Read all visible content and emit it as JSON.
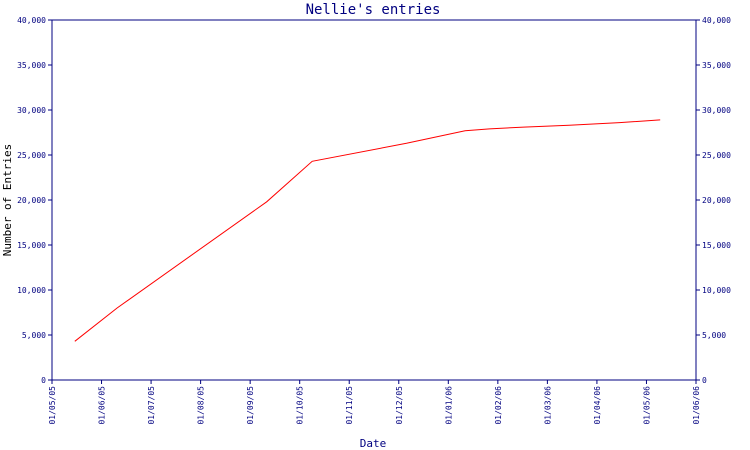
{
  "chart_data": {
    "type": "line",
    "title": "Nellie's entries",
    "xlabel": "Date",
    "ylabel": "Number of Entries",
    "x_ticks": [
      "01/05/05",
      "01/06/05",
      "01/07/05",
      "01/08/05",
      "01/09/05",
      "01/10/05",
      "01/11/05",
      "01/12/05",
      "01/01/06",
      "01/02/06",
      "01/03/06",
      "01/04/06",
      "01/05/06",
      "01/06/06"
    ],
    "y_ticks": [
      "0",
      "5,000",
      "10,000",
      "15,000",
      "20,000",
      "25,000",
      "30,000",
      "35,000",
      "40,000"
    ],
    "ylim": [
      0,
      40000
    ],
    "xlim": [
      "2005-05-01",
      "2006-06-01"
    ],
    "grid": false,
    "series": [
      {
        "color": "#ff0000",
        "x": [
          "2005-05-15",
          "2005-06-10",
          "2005-09-10",
          "2005-10-08",
          "2005-12-05",
          "2006-01-10",
          "2006-01-25",
          "2006-02-15",
          "2006-03-15",
          "2006-04-15",
          "2006-05-10"
        ],
        "y": [
          4300,
          8000,
          19800,
          24300,
          26300,
          27700,
          27900,
          28100,
          28300,
          28600,
          28900
        ]
      }
    ],
    "axis_color": "#000080"
  }
}
